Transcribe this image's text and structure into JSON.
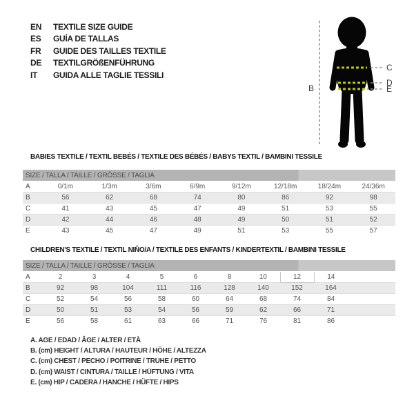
{
  "languages": [
    {
      "code": "EN",
      "title": "TEXTILE SIZE GUIDE"
    },
    {
      "code": "ES",
      "title": "GUÍA DE TALLAS"
    },
    {
      "code": "FR",
      "title": "GUIDE DES TAILLES TEXTILE"
    },
    {
      "code": "DE",
      "title": "TEXTILGRÖßENFÜHRUNG"
    },
    {
      "code": "IT",
      "title": "GUIDA ALLE TAGLIE TESSILI"
    }
  ],
  "figure": {
    "height_label": "B",
    "chest_label": "C",
    "waist_label": "D",
    "hip_label": "E"
  },
  "tables": [
    {
      "title": "BABIES TEXTILE / TEXTIL BEBÉS / TEXTILE DES BÉBÉS / BABYS TEXTIL / BAMBINI TESSILE",
      "header": "SIZE / TALLA / TAILLE / GRÖSSE / TAGLIA",
      "rows": [
        {
          "label": "A",
          "values": [
            "0/1m",
            "1/3m",
            "3/6m",
            "6/9m",
            "9/12m",
            "12/18m",
            "18/24m",
            "24/36m"
          ]
        },
        {
          "label": "B",
          "values": [
            "56",
            "62",
            "68",
            "74",
            "80",
            "86",
            "92",
            "98"
          ]
        },
        {
          "label": "C",
          "values": [
            "41",
            "43",
            "45",
            "47",
            "49",
            "51",
            "53",
            "55"
          ]
        },
        {
          "label": "D",
          "values": [
            "42",
            "44",
            "46",
            "48",
            "49",
            "50",
            "51",
            "52"
          ]
        },
        {
          "label": "E",
          "values": [
            "43",
            "45",
            "47",
            "49",
            "51",
            "53",
            "55",
            "57"
          ]
        }
      ]
    },
    {
      "title": "CHILDREN'S TEXTILE / TEXTIL NIÑO/A / TEXTILE DES ENFANTS / KINDERTEXTIL / BAMBINI TESSILE",
      "header": "SIZE / TALLA / TAILLE / GRÖSSE / TAGLIA",
      "highlight_cell": {
        "row": 0,
        "col": 7
      },
      "rows": [
        {
          "label": "A",
          "values": [
            "2",
            "3",
            "4",
            "5",
            "6",
            "8",
            "10",
            "12",
            "14"
          ]
        },
        {
          "label": "B",
          "values": [
            "92",
            "98",
            "104",
            "111",
            "116",
            "128",
            "140",
            "152",
            "164"
          ]
        },
        {
          "label": "C",
          "values": [
            "52",
            "54",
            "56",
            "58",
            "60",
            "64",
            "68",
            "74",
            "84"
          ]
        },
        {
          "label": "D",
          "values": [
            "50",
            "51",
            "53",
            "54",
            "56",
            "59",
            "62",
            "66",
            "71"
          ]
        },
        {
          "label": "E",
          "values": [
            "56",
            "58",
            "61",
            "63",
            "66",
            "71",
            "76",
            "81",
            "86"
          ]
        }
      ]
    }
  ],
  "legend": [
    "A. AGE / EDAD / ÂGE / ALTER / ETÀ",
    "B. (cm) HEIGHT / ALTURA / HAUTEUR / HÖHE / ALTEZZA",
    "C. (cm) CHEST / PECHO / POITRINE / TRUHE / PETTO",
    "D. (cm) WAIST / CINTURA / TAILLE / HÜFTUNG / VITA",
    "E. (cm) HIP / CADERA / HANCHE / HÜFTE / HIPS"
  ],
  "colors": {
    "silhouette": "#060606",
    "measure_dash_on_body": "#c3ca05",
    "measure_dash_gray": "#8f8f8f",
    "header_bar_dark": "#b3b3b3",
    "header_bar_light": "#c7c7c7",
    "row_stripe": "#eaeaea",
    "label_text": "#3a3a3a"
  }
}
